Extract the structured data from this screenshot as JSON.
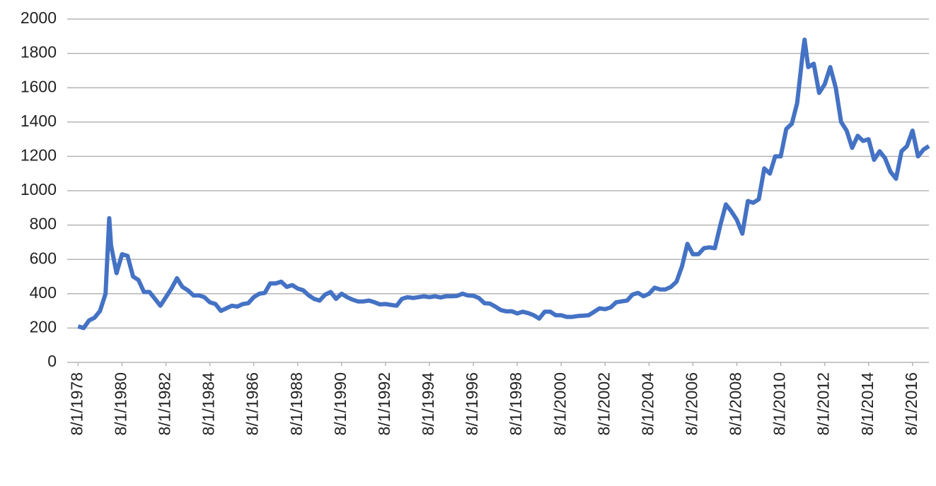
{
  "chart_data": {
    "type": "line",
    "color": "#4472c4",
    "grid": true,
    "ylim": [
      0,
      2000
    ],
    "yticks": [
      0,
      200,
      400,
      600,
      800,
      1000,
      1200,
      1400,
      1600,
      1800,
      2000
    ],
    "xlim": [
      "2/1/1978",
      "5/1/2017"
    ],
    "xticks": [
      "8/1/1978",
      "8/1/1980",
      "8/1/1982",
      "8/1/1984",
      "8/1/1986",
      "8/1/1988",
      "8/1/1990",
      "8/1/1992",
      "8/1/1994",
      "8/1/1996",
      "8/1/1998",
      "8/1/2000",
      "8/1/2002",
      "8/1/2004",
      "8/1/2006",
      "8/1/2008",
      "8/1/2010",
      "8/1/2012",
      "8/1/2014",
      "8/1/2016"
    ],
    "x": [
      "8/1/1978",
      "11/1/1978",
      "2/1/1979",
      "5/1/1979",
      "8/1/1979",
      "11/1/1979",
      "1/1/1980",
      "2/1/1980",
      "5/1/1980",
      "8/1/1980",
      "11/1/1980",
      "2/1/1981",
      "5/1/1981",
      "8/1/1981",
      "11/1/1981",
      "2/1/1982",
      "5/1/1982",
      "8/1/1982",
      "11/1/1982",
      "2/1/1983",
      "5/1/1983",
      "8/1/1983",
      "11/1/1983",
      "2/1/1984",
      "5/1/1984",
      "8/1/1984",
      "11/1/1984",
      "2/1/1985",
      "5/1/1985",
      "8/1/1985",
      "11/1/1985",
      "2/1/1986",
      "5/1/1986",
      "8/1/1986",
      "11/1/1986",
      "2/1/1987",
      "5/1/1987",
      "8/1/1987",
      "11/1/1987",
      "2/1/1988",
      "5/1/1988",
      "8/1/1988",
      "11/1/1988",
      "2/1/1989",
      "5/1/1989",
      "8/1/1989",
      "11/1/1989",
      "2/1/1990",
      "5/1/1990",
      "8/1/1990",
      "11/1/1990",
      "2/1/1991",
      "5/1/1991",
      "8/1/1991",
      "11/1/1991",
      "2/1/1992",
      "5/1/1992",
      "8/1/1992",
      "11/1/1992",
      "2/1/1993",
      "5/1/1993",
      "8/1/1993",
      "11/1/1993",
      "2/1/1994",
      "5/1/1994",
      "8/1/1994",
      "11/1/1994",
      "2/1/1995",
      "5/1/1995",
      "8/1/1995",
      "11/1/1995",
      "2/1/1996",
      "5/1/1996",
      "8/1/1996",
      "11/1/1996",
      "2/1/1997",
      "5/1/1997",
      "8/1/1997",
      "11/1/1997",
      "2/1/1998",
      "5/1/1998",
      "8/1/1998",
      "11/1/1998",
      "2/1/1999",
      "5/1/1999",
      "8/1/1999",
      "11/1/1999",
      "2/1/2000",
      "5/1/2000",
      "8/1/2000",
      "11/1/2000",
      "2/1/2001",
      "5/1/2001",
      "8/1/2001",
      "11/1/2001",
      "2/1/2002",
      "5/1/2002",
      "8/1/2002",
      "11/1/2002",
      "2/1/2003",
      "5/1/2003",
      "8/1/2003",
      "11/1/2003",
      "2/1/2004",
      "5/1/2004",
      "8/1/2004",
      "11/1/2004",
      "2/1/2005",
      "5/1/2005",
      "8/1/2005",
      "11/1/2005",
      "2/1/2006",
      "5/1/2006",
      "8/1/2006",
      "11/1/2006",
      "2/1/2007",
      "5/1/2007",
      "8/1/2007",
      "11/1/2007",
      "2/1/2008",
      "5/1/2008",
      "8/1/2008",
      "11/1/2008",
      "2/1/2009",
      "5/1/2009",
      "8/1/2009",
      "11/1/2009",
      "2/1/2010",
      "5/1/2010",
      "8/1/2010",
      "11/1/2010",
      "2/1/2011",
      "5/1/2011",
      "8/1/2011",
      "9/1/2011",
      "11/1/2011",
      "2/1/2012",
      "5/1/2012",
      "8/1/2012",
      "11/1/2012",
      "2/1/2013",
      "5/1/2013",
      "8/1/2013",
      "11/1/2013",
      "2/1/2014",
      "5/1/2014",
      "8/1/2014",
      "11/1/2014",
      "2/1/2015",
      "5/1/2015",
      "8/1/2015",
      "11/1/2015",
      "2/1/2016",
      "5/1/2016",
      "8/1/2016",
      "11/1/2016",
      "2/1/2017",
      "5/1/2017"
    ],
    "values": [
      210,
      200,
      245,
      260,
      300,
      400,
      840,
      680,
      520,
      630,
      620,
      500,
      480,
      410,
      410,
      370,
      330,
      380,
      430,
      490,
      440,
      420,
      390,
      390,
      380,
      350,
      340,
      300,
      315,
      330,
      325,
      340,
      345,
      380,
      400,
      405,
      460,
      460,
      470,
      440,
      450,
      430,
      420,
      390,
      370,
      360,
      395,
      410,
      370,
      400,
      380,
      365,
      355,
      355,
      360,
      350,
      338,
      340,
      335,
      330,
      370,
      380,
      375,
      380,
      385,
      380,
      385,
      378,
      385,
      385,
      387,
      400,
      390,
      388,
      375,
      345,
      343,
      325,
      305,
      297,
      298,
      285,
      295,
      287,
      275,
      255,
      295,
      295,
      275,
      275,
      265,
      265,
      270,
      272,
      275,
      295,
      315,
      310,
      320,
      350,
      355,
      360,
      395,
      405,
      385,
      400,
      435,
      425,
      425,
      440,
      470,
      560,
      690,
      630,
      630,
      665,
      670,
      665,
      800,
      920,
      880,
      830,
      750,
      940,
      930,
      950,
      1130,
      1100,
      1200,
      1200,
      1360,
      1390,
      1510,
      1800,
      1880,
      1720,
      1740,
      1570,
      1620,
      1720,
      1600,
      1400,
      1350,
      1250,
      1320,
      1290,
      1300,
      1180,
      1230,
      1190,
      1110,
      1070,
      1230,
      1260,
      1350,
      1200,
      1240,
      1260
    ]
  }
}
